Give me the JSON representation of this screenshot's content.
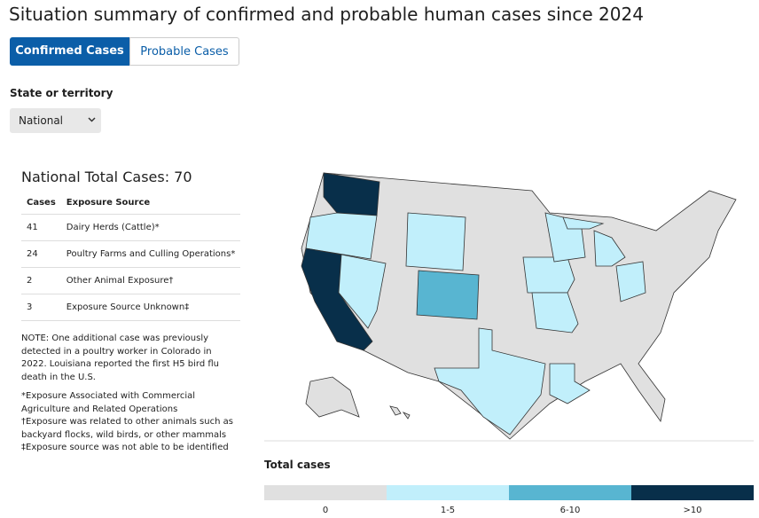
{
  "header": {
    "title": "Situation summary of confirmed and probable human cases since 2024"
  },
  "tabs": [
    "Confirmed Cases",
    "Probable Cases"
  ],
  "filter": {
    "label": "State or territory",
    "selected": "National"
  },
  "summary": {
    "heading": "National Total Cases: 70",
    "table": {
      "columns": [
        "Cases",
        "Exposure Source"
      ],
      "rows": [
        [
          41,
          "Dairy Herds (Cattle)*"
        ],
        [
          24,
          "Poultry Farms and Culling Operations*"
        ],
        [
          2,
          "Other Animal Exposure†"
        ],
        [
          3,
          "Exposure Source Unknown‡"
        ]
      ]
    },
    "note": "NOTE: One additional case was previously detected in a poultry worker in Colorado in 2022. Louisiana reported the first H5 bird flu death in the U.S.",
    "footnotes": [
      "*Exposure Associated with Commercial Agriculture and Related Operations",
      "†Exposure was related to other animals such as backyard flocks, wild birds, or other mammals",
      "‡Exposure source was not able to be identified"
    ]
  },
  "legend": {
    "title": "Total cases",
    "items": [
      {
        "label": "0",
        "color": "#e0e0e0"
      },
      {
        "label": "1-5",
        "color": "#c1effb"
      },
      {
        "label": "6-10",
        "color": "#58b5d1"
      },
      {
        "label": ">10",
        "color": "#082f4a"
      }
    ]
  }
}
